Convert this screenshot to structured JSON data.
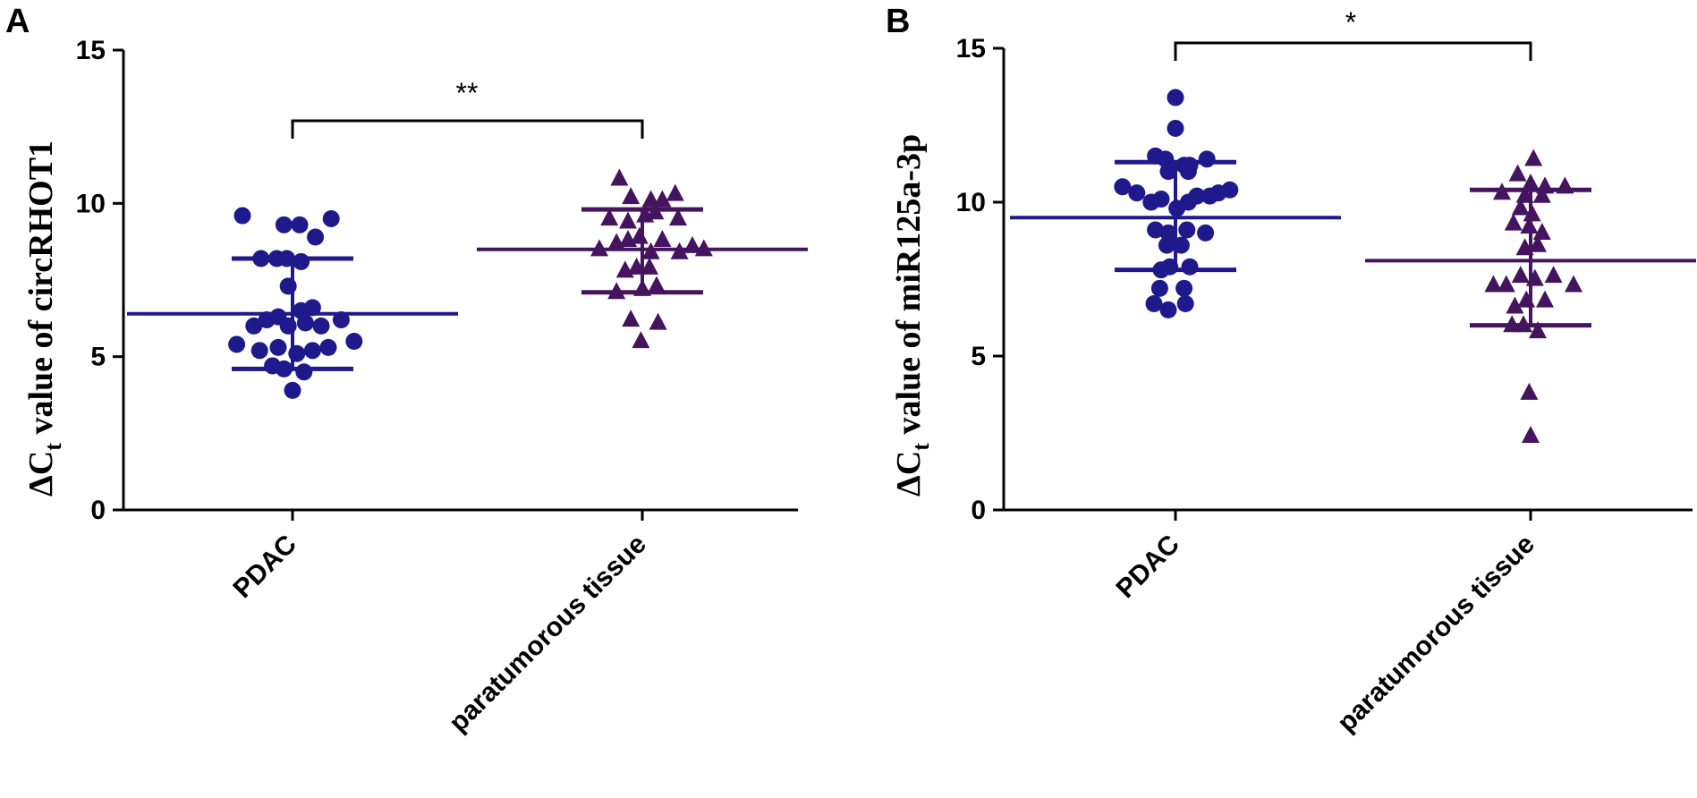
{
  "colors": {
    "pdac": "#1f1a8c",
    "para": "#44145f"
  },
  "chart_data": [
    {
      "type": "scatter",
      "panel": "A",
      "ylabel_parts": [
        "ΔC",
        "t",
        " value of circRHOT1"
      ],
      "categories": [
        "PDAC",
        "paratumorous tissue"
      ],
      "ylim": [
        0,
        15
      ],
      "yticks": [
        0,
        5,
        10,
        15
      ],
      "significance": "**",
      "series": [
        {
          "category": "PDAC",
          "marker": "circle",
          "color": "#1f1a8c",
          "mean": 6.4,
          "sd_low": 4.6,
          "sd_high": 8.2,
          "points": [
            {
              "dx": -0.35,
              "y": 9.6
            },
            {
              "dx": -0.06,
              "y": 9.3
            },
            {
              "dx": 0.05,
              "y": 9.3
            },
            {
              "dx": 0.16,
              "y": 8.9
            },
            {
              "dx": 0.27,
              "y": 9.5
            },
            {
              "dx": -0.22,
              "y": 8.2
            },
            {
              "dx": -0.11,
              "y": 8.2
            },
            {
              "dx": -0.04,
              "y": 8.2
            },
            {
              "dx": 0.06,
              "y": 8.1
            },
            {
              "dx": -0.03,
              "y": 7.3
            },
            {
              "dx": -0.1,
              "y": 6.3
            },
            {
              "dx": 0.06,
              "y": 6.5
            },
            {
              "dx": 0.14,
              "y": 6.6
            },
            {
              "dx": -0.27,
              "y": 6.0
            },
            {
              "dx": -0.18,
              "y": 6.2
            },
            {
              "dx": -0.03,
              "y": 6.0
            },
            {
              "dx": 0.09,
              "y": 6.1
            },
            {
              "dx": 0.2,
              "y": 6.0
            },
            {
              "dx": 0.34,
              "y": 6.2
            },
            {
              "dx": -0.39,
              "y": 5.4
            },
            {
              "dx": -0.23,
              "y": 5.2
            },
            {
              "dx": -0.1,
              "y": 5.3
            },
            {
              "dx": 0.03,
              "y": 5.1
            },
            {
              "dx": 0.14,
              "y": 5.2
            },
            {
              "dx": 0.25,
              "y": 5.3
            },
            {
              "dx": 0.43,
              "y": 5.5
            },
            {
              "dx": -0.14,
              "y": 4.7
            },
            {
              "dx": -0.06,
              "y": 4.6
            },
            {
              "dx": 0.08,
              "y": 4.5
            },
            {
              "dx": 0.0,
              "y": 3.9
            }
          ]
        },
        {
          "category": "paratumorous tissue",
          "marker": "triangle",
          "color": "#44145f",
          "mean": 8.5,
          "sd_low": 7.1,
          "sd_high": 9.8,
          "points": [
            {
              "dx": -0.16,
              "y": 10.8
            },
            {
              "dx": -0.08,
              "y": 10.2
            },
            {
              "dx": 0.06,
              "y": 10.1
            },
            {
              "dx": 0.14,
              "y": 10.1
            },
            {
              "dx": 0.23,
              "y": 10.3
            },
            {
              "dx": -0.23,
              "y": 9.5
            },
            {
              "dx": -0.1,
              "y": 9.4
            },
            {
              "dx": 0.02,
              "y": 9.6
            },
            {
              "dx": 0.09,
              "y": 9.7
            },
            {
              "dx": 0.25,
              "y": 9.5
            },
            {
              "dx": -0.3,
              "y": 8.5
            },
            {
              "dx": -0.18,
              "y": 8.7
            },
            {
              "dx": -0.1,
              "y": 8.8
            },
            {
              "dx": -0.02,
              "y": 8.9
            },
            {
              "dx": 0.06,
              "y": 8.4
            },
            {
              "dx": 0.14,
              "y": 8.8
            },
            {
              "dx": 0.26,
              "y": 8.4
            },
            {
              "dx": 0.35,
              "y": 8.6
            },
            {
              "dx": 0.43,
              "y": 8.5
            },
            {
              "dx": -0.12,
              "y": 7.8
            },
            {
              "dx": -0.04,
              "y": 7.9
            },
            {
              "dx": 0.05,
              "y": 7.9
            },
            {
              "dx": -0.18,
              "y": 7.1
            },
            {
              "dx": 0.0,
              "y": 7.2
            },
            {
              "dx": 0.1,
              "y": 7.3
            },
            {
              "dx": -0.08,
              "y": 6.2
            },
            {
              "dx": 0.11,
              "y": 6.1
            },
            {
              "dx": -0.01,
              "y": 5.5
            }
          ]
        }
      ]
    },
    {
      "type": "scatter",
      "panel": "B",
      "ylabel_parts": [
        "ΔC",
        "t",
        " value of miR125a-3p"
      ],
      "categories": [
        "PDAC",
        "paratumorous tissue"
      ],
      "ylim": [
        0,
        15
      ],
      "yticks": [
        0,
        5,
        10,
        15
      ],
      "significance": "*",
      "series": [
        {
          "category": "PDAC",
          "marker": "circle",
          "color": "#1f1a8c",
          "mean": 9.5,
          "sd_low": 7.8,
          "sd_high": 11.3,
          "points": [
            {
              "dx": 0.0,
              "y": 13.4
            },
            {
              "dx": 0.0,
              "y": 12.4
            },
            {
              "dx": -0.14,
              "y": 11.5
            },
            {
              "dx": -0.07,
              "y": 11.4
            },
            {
              "dx": 0.06,
              "y": 11.2
            },
            {
              "dx": 0.1,
              "y": 11.2
            },
            {
              "dx": 0.22,
              "y": 11.4
            },
            {
              "dx": -0.05,
              "y": 11.0
            },
            {
              "dx": 0.09,
              "y": 11.0
            },
            {
              "dx": -0.37,
              "y": 10.5
            },
            {
              "dx": -0.27,
              "y": 10.3
            },
            {
              "dx": -0.17,
              "y": 10.0
            },
            {
              "dx": -0.1,
              "y": 10.1
            },
            {
              "dx": 0.01,
              "y": 9.8
            },
            {
              "dx": 0.09,
              "y": 10.0
            },
            {
              "dx": 0.15,
              "y": 10.2
            },
            {
              "dx": 0.24,
              "y": 10.2
            },
            {
              "dx": 0.3,
              "y": 10.3
            },
            {
              "dx": 0.38,
              "y": 10.4
            },
            {
              "dx": -0.14,
              "y": 9.1
            },
            {
              "dx": -0.05,
              "y": 9.0
            },
            {
              "dx": 0.08,
              "y": 9.1
            },
            {
              "dx": 0.21,
              "y": 9.0
            },
            {
              "dx": -0.06,
              "y": 8.6
            },
            {
              "dx": 0.04,
              "y": 8.6
            },
            {
              "dx": -0.1,
              "y": 7.8
            },
            {
              "dx": -0.04,
              "y": 7.9
            },
            {
              "dx": 0.1,
              "y": 7.9
            },
            {
              "dx": -0.11,
              "y": 7.2
            },
            {
              "dx": 0.06,
              "y": 7.2
            },
            {
              "dx": -0.15,
              "y": 6.7
            },
            {
              "dx": 0.07,
              "y": 6.7
            },
            {
              "dx": -0.05,
              "y": 6.5
            }
          ]
        },
        {
          "category": "paratumorous tissue",
          "marker": "triangle",
          "color": "#44145f",
          "mean": 8.1,
          "sd_low": 6.0,
          "sd_high": 10.4,
          "points": [
            {
              "dx": 0.02,
              "y": 11.4
            },
            {
              "dx": -0.09,
              "y": 10.9
            },
            {
              "dx": 0.0,
              "y": 10.6
            },
            {
              "dx": 0.1,
              "y": 10.5
            },
            {
              "dx": -0.2,
              "y": 10.3
            },
            {
              "dx": -0.04,
              "y": 10.2
            },
            {
              "dx": 0.08,
              "y": 10.2
            },
            {
              "dx": 0.24,
              "y": 10.5
            },
            {
              "dx": -0.07,
              "y": 9.8
            },
            {
              "dx": 0.01,
              "y": 9.6
            },
            {
              "dx": -0.12,
              "y": 9.3
            },
            {
              "dx": -0.01,
              "y": 9.2
            },
            {
              "dx": 0.08,
              "y": 9.0
            },
            {
              "dx": -0.04,
              "y": 8.5
            },
            {
              "dx": 0.05,
              "y": 8.6
            },
            {
              "dx": -0.26,
              "y": 7.3
            },
            {
              "dx": -0.17,
              "y": 7.3
            },
            {
              "dx": -0.07,
              "y": 7.6
            },
            {
              "dx": 0.03,
              "y": 7.5
            },
            {
              "dx": 0.16,
              "y": 7.6
            },
            {
              "dx": 0.3,
              "y": 7.3
            },
            {
              "dx": -0.11,
              "y": 6.6
            },
            {
              "dx": -0.03,
              "y": 6.8
            },
            {
              "dx": 0.1,
              "y": 6.8
            },
            {
              "dx": -0.13,
              "y": 6.0
            },
            {
              "dx": -0.05,
              "y": 6.0
            },
            {
              "dx": 0.05,
              "y": 5.8
            },
            {
              "dx": -0.01,
              "y": 3.8
            },
            {
              "dx": 0.0,
              "y": 2.4
            }
          ]
        }
      ]
    }
  ]
}
